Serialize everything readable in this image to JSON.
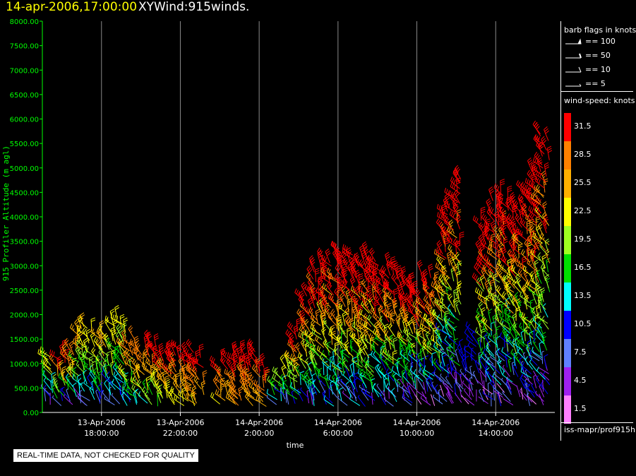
{
  "header": {
    "date_time": "14-apr-2006,17:00:00",
    "product": "XYWind:915winds."
  },
  "legend": {
    "barb_title": "barb flags in knots",
    "barbs": [
      {
        "label": "== 100",
        "kind": "flag"
      },
      {
        "label": "== 50",
        "kind": "pennant"
      },
      {
        "label": "== 10",
        "kind": "full"
      },
      {
        "label": "== 5",
        "kind": "half"
      }
    ],
    "speed_title": "wind-speed: knots",
    "speed_scale": [
      {
        "label": "31.5",
        "color": "#ff0000"
      },
      {
        "label": "28.5",
        "color": "#ff8000"
      },
      {
        "label": "25.5",
        "color": "#ffb000"
      },
      {
        "label": "22.5",
        "color": "#ffff00"
      },
      {
        "label": "19.5",
        "color": "#a0ff20"
      },
      {
        "label": "16.5",
        "color": "#00e000"
      },
      {
        "label": "13.5",
        "color": "#00ffff"
      },
      {
        "label": "10.5",
        "color": "#0000ff"
      },
      {
        "label": "7.5",
        "color": "#6080ff"
      },
      {
        "label": "4.5",
        "color": "#a020f0"
      },
      {
        "label": "1.5",
        "color": "#ff80ff"
      }
    ],
    "source": "iss-mapr/prof915h"
  },
  "qc_note": "REAL-TIME DATA, NOT CHECKED FOR QUALITY",
  "chart_data": {
    "type": "scatter",
    "marker": "wind-barb",
    "title": "14-apr-2006,17:00:00 XYWind:915winds.",
    "xlabel": "time",
    "ylabel": "915 Profiler Altitude (m agl)",
    "axis_color": "#00ff00",
    "grid": "vertical lines at x ticks",
    "ylim": [
      0,
      8000
    ],
    "yticks": [
      0,
      500,
      1000,
      1500,
      2000,
      2500,
      3000,
      3500,
      4000,
      4500,
      5000,
      5500,
      6000,
      6500,
      7000,
      7500,
      8000
    ],
    "ytick_labels": [
      "0.00",
      "500.00",
      "1000.00",
      "1500.00",
      "2000.00",
      "2500.00",
      "3000.00",
      "3500.00",
      "4000.00",
      "4500.00",
      "5000.00",
      "5500.00",
      "6000.00",
      "6500.00",
      "7000.00",
      "7500.00",
      "8000.00"
    ],
    "xlim": [
      "2006-04-13 15:00",
      "2006-04-14 17:00"
    ],
    "xticks": [
      {
        "value": "2006-04-13 18:00",
        "date": "13-Apr-2006",
        "time": "18:00:00"
      },
      {
        "value": "2006-04-13 22:00",
        "date": "13-Apr-2006",
        "time": "22:00:00"
      },
      {
        "value": "2006-04-14 02:00",
        "date": "14-Apr-2006",
        "time": "2:00:00"
      },
      {
        "value": "2006-04-14 06:00",
        "date": "14-Apr-2006",
        "time": "6:00:00"
      },
      {
        "value": "2006-04-14 10:00",
        "date": "14-Apr-2006",
        "time": "10:00:00"
      },
      {
        "value": "2006-04-14 14:00",
        "date": "14-Apr-2006",
        "time": "14:00:00"
      }
    ],
    "wind_profiles": [
      {
        "time": "2006-04-13 15:20",
        "top_m": 1150,
        "min_kt": 5,
        "max_kt": 22
      },
      {
        "time": "2006-04-13 16:00",
        "top_m": 1200,
        "min_kt": 10,
        "max_kt": 31
      },
      {
        "time": "2006-04-13 16:30",
        "top_m": 1300,
        "min_kt": 8,
        "max_kt": 28
      },
      {
        "time": "2006-04-13 17:00",
        "top_m": 1750,
        "min_kt": 6,
        "max_kt": 25
      },
      {
        "time": "2006-04-13 17:30",
        "top_m": 1700,
        "min_kt": 8,
        "max_kt": 24
      },
      {
        "time": "2006-04-13 18:00",
        "top_m": 1600,
        "min_kt": 10,
        "max_kt": 26
      },
      {
        "time": "2006-04-13 18:30",
        "top_m": 1800,
        "min_kt": 9,
        "max_kt": 24
      },
      {
        "time": "2006-04-13 19:00",
        "top_m": 1900,
        "min_kt": 8,
        "max_kt": 22
      },
      {
        "time": "2006-04-13 19:30",
        "top_m": 1500,
        "min_kt": 12,
        "max_kt": 28
      },
      {
        "time": "2006-04-13 20:00",
        "top_m": 1300,
        "min_kt": 15,
        "max_kt": 30
      },
      {
        "time": "2006-04-13 20:30",
        "top_m": 1400,
        "min_kt": 16,
        "max_kt": 31
      },
      {
        "time": "2006-04-13 21:00",
        "top_m": 1300,
        "min_kt": 18,
        "max_kt": 31
      },
      {
        "time": "2006-04-13 21:30",
        "top_m": 1200,
        "min_kt": 20,
        "max_kt": 31
      },
      {
        "time": "2006-04-13 22:00",
        "top_m": 1250,
        "min_kt": 22,
        "max_kt": 31
      },
      {
        "time": "2006-04-13 22:30",
        "top_m": 1200,
        "min_kt": 24,
        "max_kt": 31
      },
      {
        "time": "2006-04-13 23:00",
        "top_m": 1100,
        "min_kt": 25,
        "max_kt": 31
      },
      {
        "time": "2006-04-14 00:10",
        "top_m": 1000,
        "min_kt": 24,
        "max_kt": 31
      },
      {
        "time": "2006-04-14 00:40",
        "top_m": 1150,
        "min_kt": 26,
        "max_kt": 31
      },
      {
        "time": "2006-04-14 01:10",
        "top_m": 1200,
        "min_kt": 27,
        "max_kt": 31
      },
      {
        "time": "2006-04-14 01:40",
        "top_m": 1250,
        "min_kt": 26,
        "max_kt": 31
      },
      {
        "time": "2006-04-14 02:10",
        "top_m": 900,
        "min_kt": 25,
        "max_kt": 31
      },
      {
        "time": "2006-04-14 03:00",
        "top_m": 700,
        "min_kt": 10,
        "max_kt": 20
      },
      {
        "time": "2006-04-14 03:30",
        "top_m": 1000,
        "min_kt": 8,
        "max_kt": 22
      },
      {
        "time": "2006-04-14 04:00",
        "top_m": 1700,
        "min_kt": 10,
        "max_kt": 31
      },
      {
        "time": "2006-04-14 04:30",
        "top_m": 2400,
        "min_kt": 8,
        "max_kt": 31
      },
      {
        "time": "2006-04-14 05:00",
        "top_m": 3000,
        "min_kt": 10,
        "max_kt": 31
      },
      {
        "time": "2006-04-14 05:30",
        "top_m": 3100,
        "min_kt": 9,
        "max_kt": 31
      },
      {
        "time": "2006-04-14 06:00",
        "top_m": 3300,
        "min_kt": 10,
        "max_kt": 31
      },
      {
        "time": "2006-04-14 06:30",
        "top_m": 3200,
        "min_kt": 8,
        "max_kt": 31
      },
      {
        "time": "2006-04-14 07:00",
        "top_m": 3100,
        "min_kt": 9,
        "max_kt": 31
      },
      {
        "time": "2006-04-14 07:30",
        "top_m": 3200,
        "min_kt": 10,
        "max_kt": 31
      },
      {
        "time": "2006-04-14 08:00",
        "top_m": 3100,
        "min_kt": 8,
        "max_kt": 31
      },
      {
        "time": "2006-04-14 08:30",
        "top_m": 3000,
        "min_kt": 7,
        "max_kt": 31
      },
      {
        "time": "2006-04-14 09:00",
        "top_m": 2900,
        "min_kt": 8,
        "max_kt": 31
      },
      {
        "time": "2006-04-14 09:30",
        "top_m": 2700,
        "min_kt": 6,
        "max_kt": 31
      },
      {
        "time": "2006-04-14 10:00",
        "top_m": 2600,
        "min_kt": 5,
        "max_kt": 31
      },
      {
        "time": "2006-04-14 10:30",
        "top_m": 2800,
        "min_kt": 6,
        "max_kt": 31
      },
      {
        "time": "2006-04-14 11:00",
        "top_m": 2600,
        "min_kt": 5,
        "max_kt": 28
      },
      {
        "time": "2006-04-14 11:30",
        "top_m": 4200,
        "min_kt": 4,
        "max_kt": 31
      },
      {
        "time": "2006-04-14 12:00",
        "top_m": 4800,
        "min_kt": 4,
        "max_kt": 31
      },
      {
        "time": "2006-04-14 12:30",
        "top_m": 1200,
        "min_kt": 3,
        "max_kt": 12
      },
      {
        "time": "2006-04-14 13:00",
        "top_m": 1600,
        "min_kt": 3,
        "max_kt": 12
      },
      {
        "time": "2006-04-14 13:30",
        "top_m": 3900,
        "min_kt": 4,
        "max_kt": 31
      },
      {
        "time": "2006-04-14 14:00",
        "top_m": 4300,
        "min_kt": 5,
        "max_kt": 31
      },
      {
        "time": "2006-04-14 14:30",
        "top_m": 4500,
        "min_kt": 5,
        "max_kt": 31
      },
      {
        "time": "2006-04-14 15:00",
        "top_m": 4200,
        "min_kt": 6,
        "max_kt": 31
      },
      {
        "time": "2006-04-14 15:30",
        "top_m": 4500,
        "min_kt": 6,
        "max_kt": 31
      },
      {
        "time": "2006-04-14 16:00",
        "top_m": 4900,
        "min_kt": 5,
        "max_kt": 31
      },
      {
        "time": "2006-04-14 16:30",
        "top_m": 5700,
        "min_kt": 5,
        "max_kt": 31
      }
    ]
  }
}
